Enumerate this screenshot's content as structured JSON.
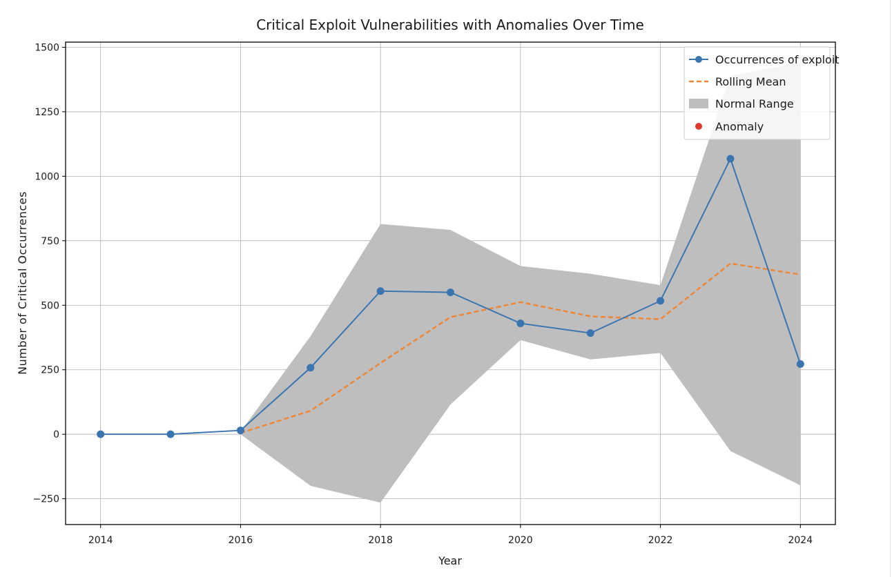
{
  "chart_data": {
    "type": "line",
    "title": "Critical Exploit Vulnerabilities with Anomalies Over Time",
    "xlabel": "Year",
    "ylabel": "Number of Critical Occurrences",
    "xlim": [
      2013.5,
      2024.5
    ],
    "ylim": [
      -350,
      1520
    ],
    "x_ticks": [
      2014,
      2016,
      2018,
      2020,
      2022,
      2024
    ],
    "y_ticks": [
      -250,
      0,
      250,
      500,
      750,
      1000,
      1250,
      1500
    ],
    "grid": true,
    "legend_position": "top-right",
    "x": [
      2014,
      2015,
      2016,
      2017,
      2018,
      2019,
      2020,
      2021,
      2022,
      2023,
      2024
    ],
    "series": [
      {
        "name": "Occurrences of exploit",
        "style": "line-marker",
        "color": "#3b75af",
        "values": [
          0,
          0,
          15,
          258,
          555,
          550,
          430,
          392,
          517,
          1068,
          272
        ]
      },
      {
        "name": "Rolling Mean",
        "style": "dashed",
        "color": "#ef8636",
        "x": [
          2016,
          2017,
          2018,
          2019,
          2020,
          2021,
          2022,
          2023,
          2024
        ],
        "values": [
          5,
          91,
          276,
          454,
          512,
          457,
          446,
          662,
          619
        ]
      },
      {
        "name": "Normal Range",
        "style": "band",
        "color": "#bebebe",
        "x": [
          2016,
          2017,
          2018,
          2019,
          2020,
          2021,
          2022,
          2023,
          2024
        ],
        "upper": [
          10,
          380,
          815,
          792,
          652,
          622,
          578,
          1390,
          1440
        ],
        "lower": [
          0,
          -200,
          -265,
          115,
          365,
          290,
          315,
          -65,
          -198
        ]
      },
      {
        "name": "Anomaly",
        "style": "scatter",
        "color": "#e03a2f",
        "x": [],
        "values": []
      }
    ]
  }
}
